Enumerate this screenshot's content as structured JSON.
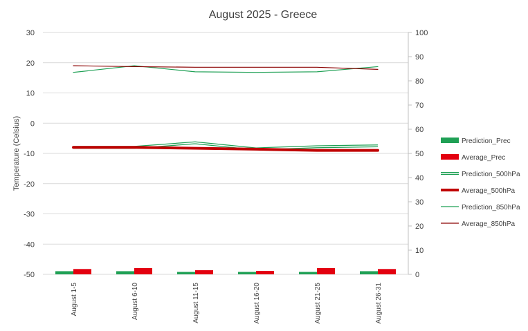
{
  "chart_data": {
    "type": "bar+line",
    "title": "August 2025 - Greece",
    "ylabel": "Temperature (Celsius)",
    "ylabel_right": "",
    "categories": [
      "August 1-5",
      "August 6-10",
      "August 11-15",
      "August 16-20",
      "August 21-25",
      "August 26-31"
    ],
    "ylim": [
      -50,
      30
    ],
    "yticks": [
      30,
      20,
      10,
      0,
      -10,
      -20,
      -30,
      -40,
      -50
    ],
    "ylim_right": [
      0,
      100
    ],
    "yticks_right": [
      100,
      90,
      80,
      70,
      60,
      50,
      40,
      30,
      20,
      10,
      0
    ],
    "grid": true,
    "legend_position": "right",
    "series": [
      {
        "name": "Prediction_Prec",
        "kind": "bar",
        "axis": "right",
        "color": "#1fa055",
        "values": [
          1.3,
          1.3,
          1.0,
          1.0,
          1.0,
          1.3
        ]
      },
      {
        "name": "Average_Prec",
        "kind": "bar",
        "axis": "right",
        "color": "#e3000f",
        "values": [
          2.2,
          2.6,
          1.7,
          1.4,
          2.6,
          2.2
        ]
      },
      {
        "name": "Prediction_500hPa",
        "kind": "line",
        "style": "double",
        "axis": "left",
        "color": "#1fa055",
        "values": [
          -8,
          -8,
          -6.5,
          -8.5,
          -7.8,
          -7.5
        ]
      },
      {
        "name": "Average_500hPa",
        "kind": "line",
        "style": "thick",
        "axis": "left",
        "color": "#c00000",
        "values": [
          -8,
          -8,
          -8.3,
          -8.6,
          -9,
          -9
        ]
      },
      {
        "name": "Prediction_850hPa",
        "kind": "line",
        "style": "thin",
        "axis": "left",
        "color": "#1fa055",
        "values": [
          16.8,
          19,
          17,
          16.8,
          17,
          18.7
        ]
      },
      {
        "name": "Average_850hPa",
        "kind": "line",
        "style": "thin",
        "axis": "left",
        "color": "#8b0000",
        "values": [
          19,
          18.7,
          18.5,
          18.5,
          18.5,
          17.8
        ]
      }
    ]
  }
}
